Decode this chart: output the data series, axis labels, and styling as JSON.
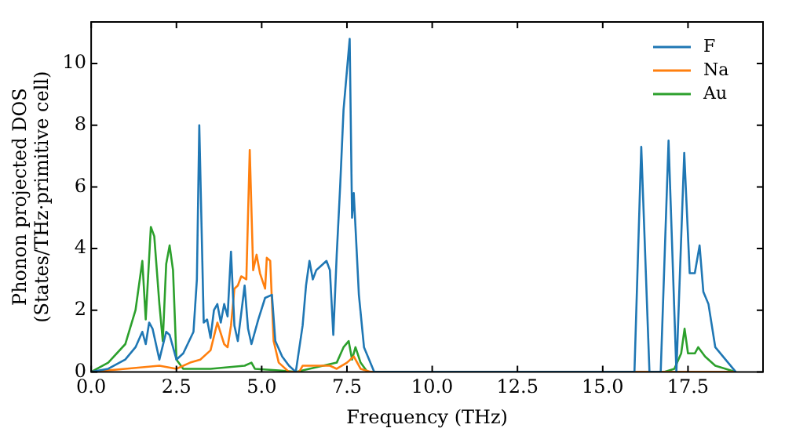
{
  "chart_data": {
    "type": "line",
    "xlabel": "Frequency (THz)",
    "ylabel": "Phonon projected DOS\n(States/THz·primitive cell)",
    "xlim": [
      0,
      19.7
    ],
    "ylim": [
      0,
      11.35
    ],
    "xticks": [
      {
        "value": 0,
        "label": "0.0"
      },
      {
        "value": 2.5,
        "label": "2.5"
      },
      {
        "value": 5,
        "label": "5.0"
      },
      {
        "value": 7.5,
        "label": "7.5"
      },
      {
        "value": 10,
        "label": "10.0"
      },
      {
        "value": 12.5,
        "label": "12.5"
      },
      {
        "value": 15,
        "label": "15.0"
      },
      {
        "value": 17.5,
        "label": "17.5"
      }
    ],
    "yticks": [
      0,
      2,
      4,
      6,
      8,
      10
    ],
    "grid": false,
    "legend": "top right",
    "marker": "none",
    "line_style": "solid",
    "series": [
      {
        "name": "F",
        "color": "#1f77b4",
        "x": [
          0,
          0.5,
          1.0,
          1.3,
          1.5,
          1.6,
          1.7,
          1.8,
          2.0,
          2.2,
          2.3,
          2.5,
          2.7,
          3.0,
          3.1,
          3.17,
          3.3,
          3.4,
          3.5,
          3.6,
          3.7,
          3.8,
          3.9,
          4.0,
          4.1,
          4.2,
          4.3,
          4.5,
          4.6,
          4.7,
          4.9,
          5.1,
          5.3,
          5.4,
          5.6,
          5.8,
          6.0,
          6.2,
          6.3,
          6.4,
          6.5,
          6.6,
          6.7,
          6.9,
          7.0,
          7.1,
          7.2,
          7.3,
          7.4,
          7.58,
          7.65,
          7.7,
          7.85,
          8.0,
          8.3,
          15.93,
          16.13,
          16.37,
          16.7,
          16.93,
          17.16,
          17.39,
          17.55,
          17.7,
          17.84,
          17.95,
          18.1,
          18.3,
          18.6,
          18.9
        ],
        "values": [
          0,
          0.1,
          0.4,
          0.8,
          1.3,
          0.9,
          1.6,
          1.4,
          0.4,
          1.3,
          1.2,
          0.4,
          0.6,
          1.3,
          3.0,
          8.0,
          1.6,
          1.7,
          1.1,
          2.0,
          2.2,
          1.6,
          2.2,
          1.8,
          3.9,
          1.5,
          1.0,
          2.8,
          1.4,
          0.9,
          1.7,
          2.4,
          2.5,
          1.0,
          0.5,
          0.2,
          0,
          1.5,
          2.8,
          3.6,
          3.0,
          3.3,
          3.4,
          3.6,
          3.3,
          1.2,
          3.8,
          6.0,
          8.5,
          10.8,
          5.0,
          5.8,
          2.5,
          0.8,
          0,
          0,
          7.3,
          0,
          0,
          7.5,
          0,
          7.1,
          3.2,
          3.2,
          4.1,
          2.6,
          2.2,
          0.8,
          0.4,
          0
        ]
      },
      {
        "name": "Na",
        "color": "#ff7f0e",
        "x": [
          0,
          1.0,
          2.0,
          2.5,
          2.9,
          3.2,
          3.5,
          3.7,
          3.9,
          4.0,
          4.1,
          4.2,
          4.3,
          4.4,
          4.55,
          4.65,
          4.75,
          4.85,
          4.95,
          5.1,
          5.15,
          5.25,
          5.35,
          5.5,
          5.8,
          6.1,
          6.2,
          6.5,
          7.0,
          7.2,
          7.5,
          7.7,
          7.9,
          8.2,
          18.9
        ],
        "values": [
          0,
          0.1,
          0.2,
          0.1,
          0.3,
          0.4,
          0.7,
          1.6,
          0.9,
          0.8,
          1.5,
          2.7,
          2.8,
          3.1,
          3.0,
          7.2,
          3.3,
          3.8,
          3.2,
          2.7,
          3.7,
          3.6,
          1.0,
          0.3,
          0,
          0,
          0.2,
          0.2,
          0.2,
          0.1,
          0.3,
          0.5,
          0.1,
          0,
          0
        ]
      },
      {
        "name": "Au",
        "color": "#2ca02c",
        "x": [
          0,
          0.5,
          1.0,
          1.3,
          1.5,
          1.6,
          1.75,
          1.85,
          2.0,
          2.1,
          2.2,
          2.3,
          2.4,
          2.5,
          2.7,
          3.5,
          4.5,
          4.7,
          4.8,
          5.5,
          6.0,
          7.2,
          7.4,
          7.55,
          7.65,
          7.75,
          7.9,
          8.1,
          16.8,
          17.1,
          17.3,
          17.4,
          17.5,
          17.7,
          17.8,
          18.0,
          18.3,
          18.9
        ],
        "values": [
          0,
          0.3,
          0.9,
          2.0,
          3.6,
          1.7,
          4.7,
          4.4,
          2.2,
          1.0,
          3.5,
          4.1,
          3.3,
          0.4,
          0.1,
          0.1,
          0.2,
          0.3,
          0.1,
          0.05,
          0,
          0.3,
          0.8,
          1.0,
          0.4,
          0.8,
          0.3,
          0,
          0,
          0.1,
          0.6,
          1.4,
          0.6,
          0.6,
          0.8,
          0.5,
          0.2,
          0
        ]
      }
    ]
  }
}
